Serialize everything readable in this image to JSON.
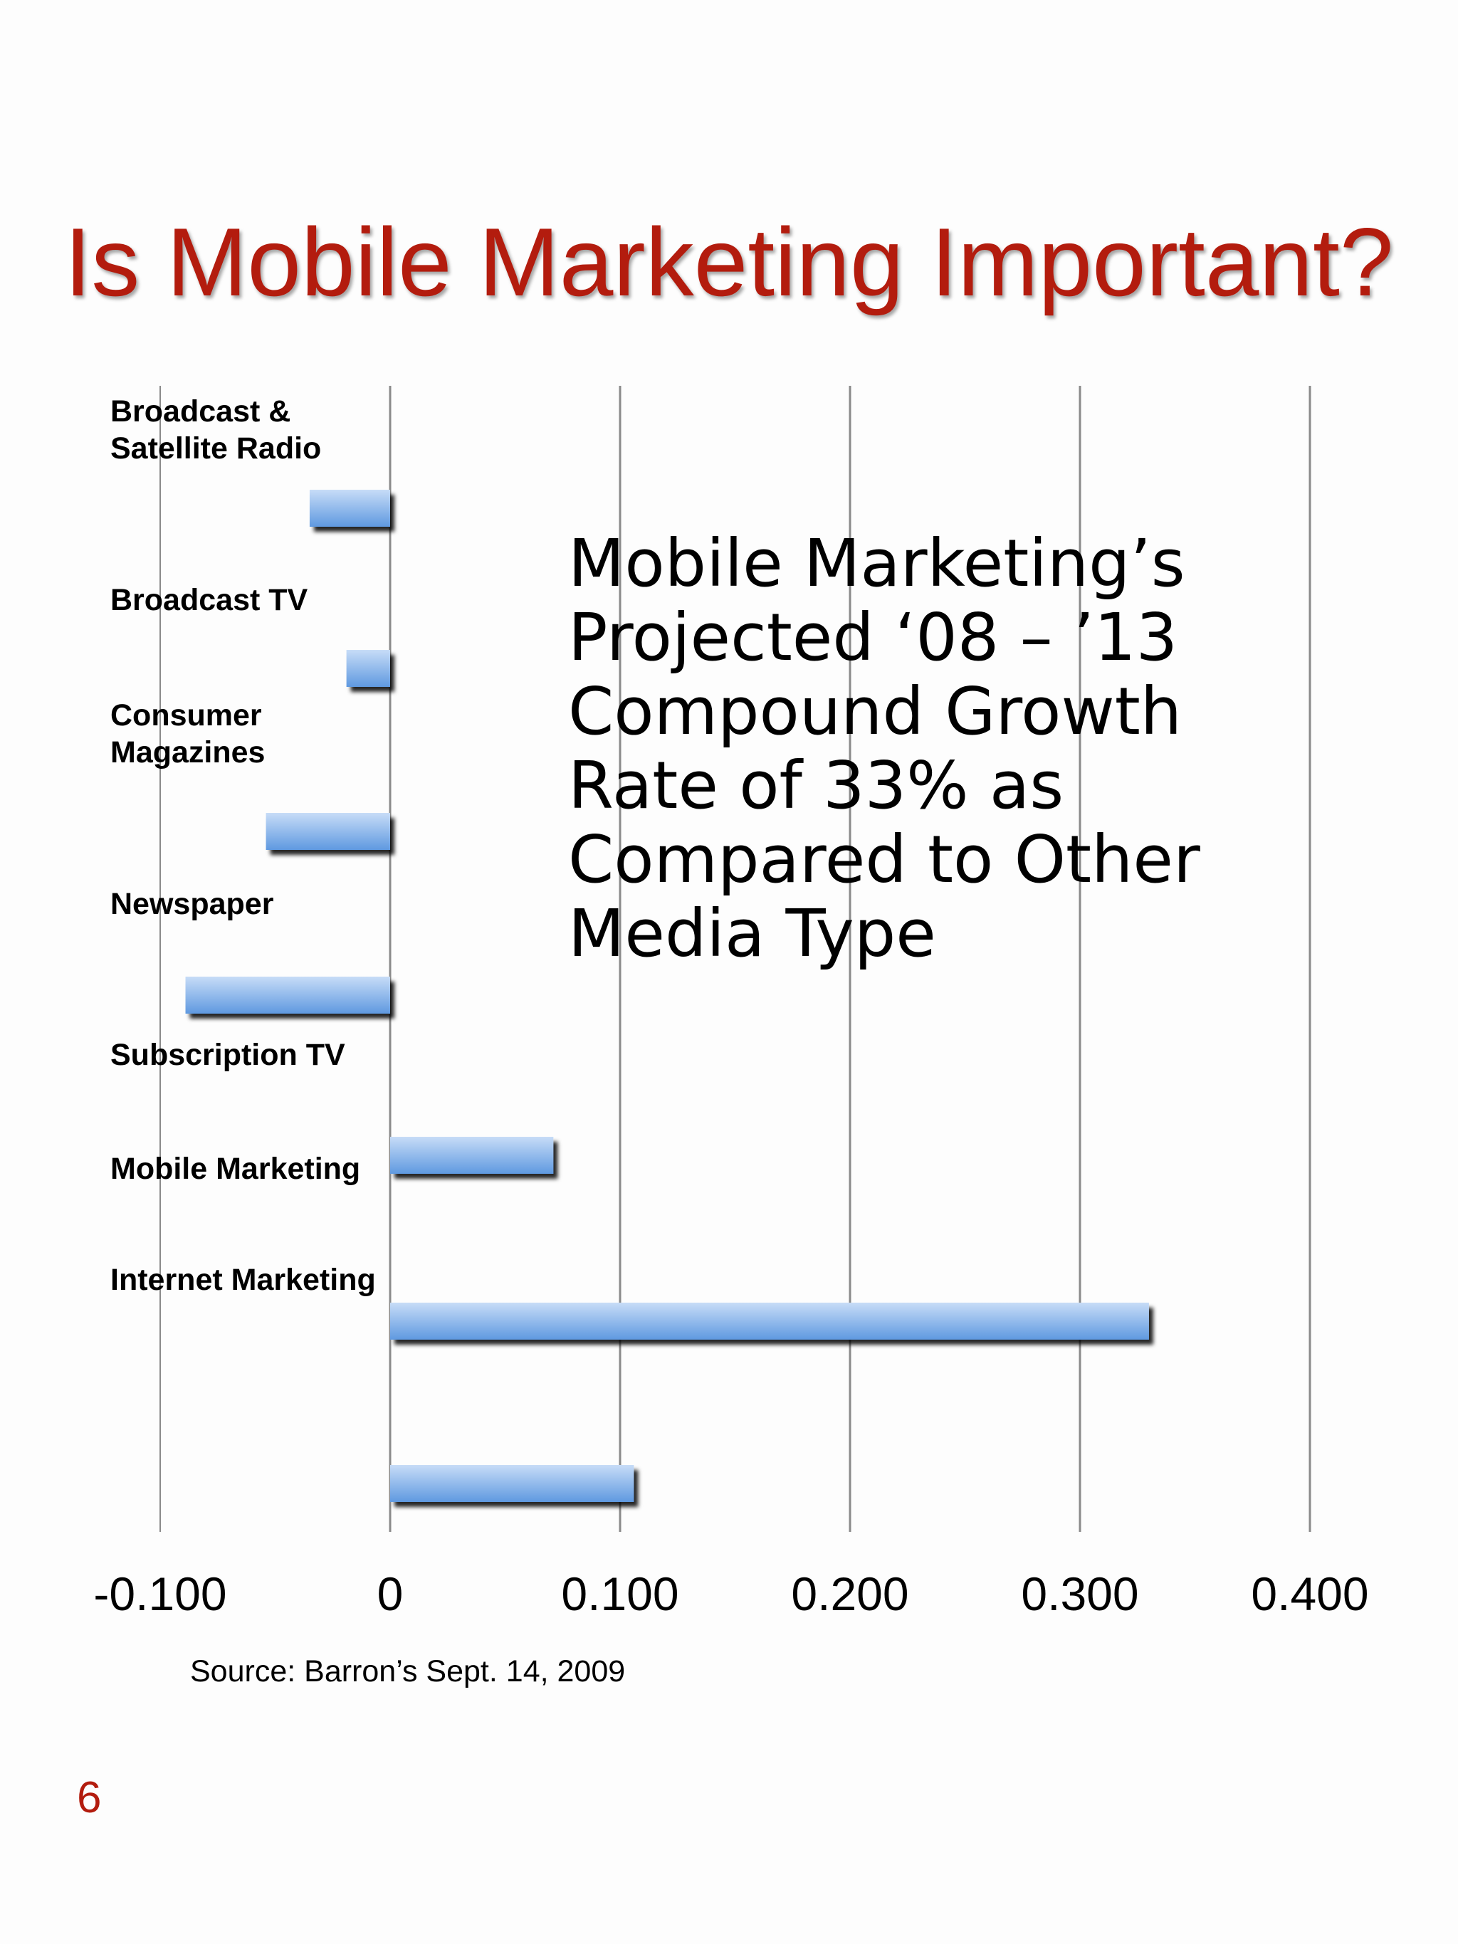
{
  "slide": {
    "title": "Is Mobile Marketing Important?",
    "callout": "Mobile Marketing’s\nProjected ‘08 – ’13\nCompound Growth\nRate of 33%  as\nCompared to Other\nMedia Type",
    "source": "Source:  Barron’s Sept. 14, 2009",
    "page_number": "6"
  },
  "colors": {
    "title": "#b31c0e",
    "bar_top": "#c7dcf7",
    "bar_bottom": "#5f99e0",
    "grid": "#8a8a8a"
  },
  "chart_data": {
    "type": "bar",
    "orientation": "horizontal",
    "title": "",
    "xlabel": "",
    "ylabel": "",
    "xlim": [
      -0.1,
      0.4
    ],
    "x_ticks": [
      -0.1,
      0,
      0.1,
      0.2,
      0.3,
      0.4
    ],
    "x_tick_labels": [
      "-0.100",
      "0",
      "0.100",
      "0.200",
      "0.300",
      "0.400"
    ],
    "grid": true,
    "legend": "none",
    "category_labels": [
      [
        "Broadcast &",
        "Satellite Radio"
      ],
      [
        "Broadcast TV"
      ],
      [
        "Consumer",
        "Magazines"
      ],
      [
        "Newspaper"
      ],
      [
        "Subscription TV"
      ],
      [
        "Mobile Marketing"
      ],
      [
        "Internet Marketing"
      ]
    ],
    "bar_values": [
      -0.035,
      -0.019,
      -0.054,
      -0.089,
      0.071,
      0.33,
      0.106
    ]
  }
}
